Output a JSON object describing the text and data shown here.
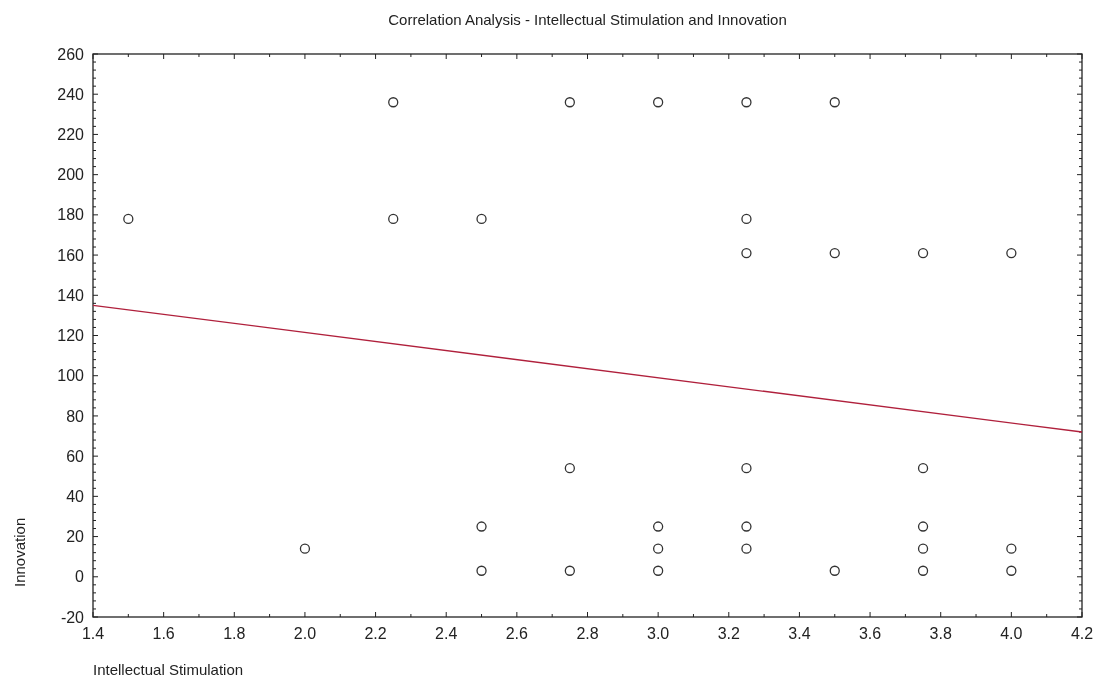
{
  "chart_data": {
    "type": "scatter",
    "title": "Correlation Analysis - Intellectual Stimulation and Innovation",
    "xlabel": "Intellectual Stimulation",
    "ylabel": "Innovation",
    "xlim": [
      1.4,
      4.2
    ],
    "xticks": [
      {
        "value": 1.4,
        "label": "1.4"
      },
      {
        "value": 1.6,
        "label": "1.6"
      },
      {
        "value": 1.8,
        "label": "1.8"
      },
      {
        "value": 2.0,
        "label": "2.0"
      },
      {
        "value": 2.2,
        "label": "2.2"
      },
      {
        "value": 2.4,
        "label": "2.4"
      },
      {
        "value": 2.6,
        "label": "2.6"
      },
      {
        "value": 2.8,
        "label": "2.8"
      },
      {
        "value": 3.0,
        "label": "3.0"
      },
      {
        "value": 3.2,
        "label": "3.2"
      },
      {
        "value": 3.4,
        "label": "3.4"
      },
      {
        "value": 3.6,
        "label": "3.6"
      },
      {
        "value": 3.8,
        "label": "3.8"
      },
      {
        "value": 4.0,
        "label": "4.0"
      },
      {
        "value": 4.2,
        "label": "4.2"
      }
    ],
    "ylim": [
      -20,
      260
    ],
    "yticks": [
      -20,
      0,
      20,
      40,
      60,
      80,
      100,
      120,
      140,
      160,
      180,
      200,
      220,
      240,
      260
    ],
    "grid": false,
    "marker": "circle",
    "series": [
      {
        "color": "#333333",
        "x": [
          1.5,
          2.0,
          2.25,
          2.25,
          2.5,
          2.5,
          2.5,
          2.75,
          2.75,
          2.75,
          3.0,
          3.0,
          3.0,
          3.0,
          3.25,
          3.25,
          3.25,
          3.25,
          3.25,
          3.25,
          3.5,
          3.5,
          3.5,
          3.75,
          3.75,
          3.75,
          3.75,
          3.75,
          4.0,
          4.0,
          4.0
        ],
        "values": [
          178,
          14,
          236,
          178,
          178,
          25,
          3,
          236,
          54,
          3,
          236,
          25,
          14,
          3,
          236,
          178,
          161,
          54,
          25,
          14,
          236,
          161,
          3,
          161,
          54,
          25,
          14,
          3,
          161,
          14,
          3
        ]
      },
      {
        "type": "line",
        "color": "#b0203c",
        "marker": "none",
        "line_style": "solid",
        "x": [
          1.4,
          4.2
        ],
        "values": [
          135,
          72
        ]
      }
    ]
  }
}
